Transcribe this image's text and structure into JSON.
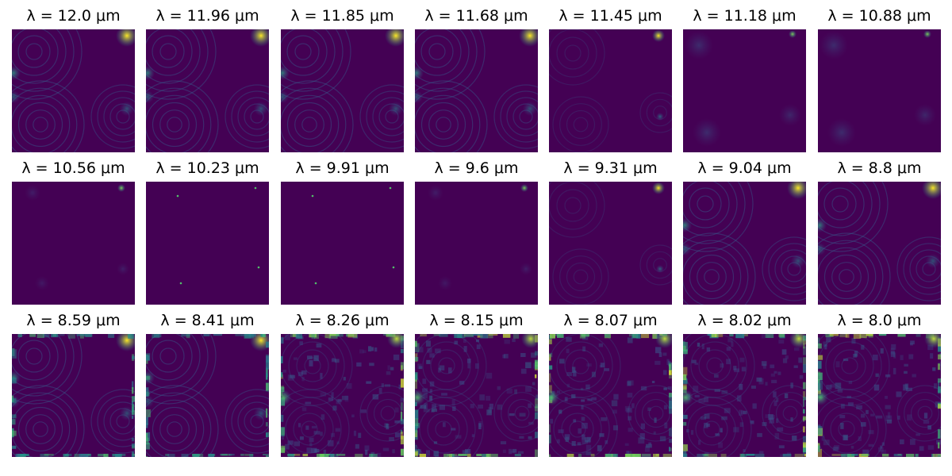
{
  "figure": {
    "colormap": "viridis",
    "background_color": "#440154",
    "rows": 3,
    "cols": 7,
    "panels": [
      {
        "title": "λ = 12.0 μm",
        "wavelength_um": 12.0,
        "pattern": "rings"
      },
      {
        "title": "λ = 11.96 μm",
        "wavelength_um": 11.96,
        "pattern": "rings"
      },
      {
        "title": "λ = 11.85 μm",
        "wavelength_um": 11.85,
        "pattern": "rings"
      },
      {
        "title": "λ = 11.68 μm",
        "wavelength_um": 11.68,
        "pattern": "rings"
      },
      {
        "title": "λ = 11.45 μm",
        "wavelength_um": 11.45,
        "pattern": "faint-rings"
      },
      {
        "title": "λ = 11.18 μm",
        "wavelength_um": 11.18,
        "pattern": "faint-blobs"
      },
      {
        "title": "λ = 10.88 μm",
        "wavelength_um": 10.88,
        "pattern": "faint-blobs"
      },
      {
        "title": "λ = 10.56 μm",
        "wavelength_um": 10.56,
        "pattern": "sparse"
      },
      {
        "title": "λ = 10.23 μm",
        "wavelength_um": 10.23,
        "pattern": "points"
      },
      {
        "title": "λ = 9.91 μm",
        "wavelength_um": 9.91,
        "pattern": "points"
      },
      {
        "title": "λ = 9.6 μm",
        "wavelength_um": 9.6,
        "pattern": "sparse"
      },
      {
        "title": "λ = 9.31 μm",
        "wavelength_um": 9.31,
        "pattern": "faint-rings"
      },
      {
        "title": "λ = 9.04 μm",
        "wavelength_um": 9.04,
        "pattern": "rings"
      },
      {
        "title": "λ = 8.8 μm",
        "wavelength_um": 8.8,
        "pattern": "rings"
      },
      {
        "title": "λ = 8.59 μm",
        "wavelength_um": 8.59,
        "pattern": "rings-edges"
      },
      {
        "title": "λ = 8.41 μm",
        "wavelength_um": 8.41,
        "pattern": "rings-edges"
      },
      {
        "title": "λ = 8.26 μm",
        "wavelength_um": 8.26,
        "pattern": "speckle-edges"
      },
      {
        "title": "λ = 8.15 μm",
        "wavelength_um": 8.15,
        "pattern": "speckle-edges"
      },
      {
        "title": "λ = 8.07 μm",
        "wavelength_um": 8.07,
        "pattern": "speckle-edges"
      },
      {
        "title": "λ = 8.02 μm",
        "wavelength_um": 8.02,
        "pattern": "speckle-edges"
      },
      {
        "title": "λ = 8.0 μm",
        "wavelength_um": 8.0,
        "pattern": "speckle-edges"
      }
    ]
  }
}
